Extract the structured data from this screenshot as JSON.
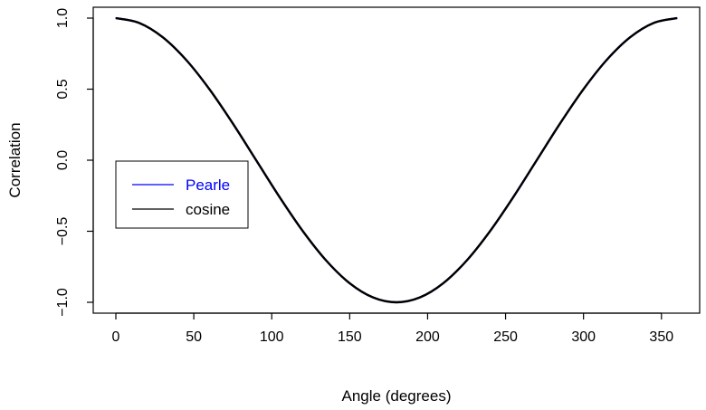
{
  "chart_data": {
    "type": "line",
    "title": "",
    "xlabel": "Angle (degrees)",
    "ylabel": "Correlation",
    "xlim": [
      0,
      360
    ],
    "ylim": [
      -1,
      1
    ],
    "x_ticks": [
      0,
      50,
      100,
      150,
      200,
      250,
      300,
      350
    ],
    "x_tick_labels": [
      "0",
      "50",
      "100",
      "150",
      "200",
      "250",
      "300",
      "350"
    ],
    "y_ticks": [
      -1,
      -0.5,
      0,
      0.5,
      1
    ],
    "y_tick_labels": [
      "−1.0",
      "−0.5",
      "0.0",
      "0.5",
      "1.0"
    ],
    "grid": false,
    "legend_position": "left",
    "series": [
      {
        "name": "Pearle",
        "color": "#0000ff",
        "x": [
          0,
          15,
          30,
          45,
          60,
          75,
          90,
          105,
          120,
          135,
          150,
          165,
          180,
          195,
          210,
          225,
          240,
          255,
          270,
          285,
          300,
          315,
          330,
          345,
          360
        ],
        "y": [
          1,
          0.966,
          0.866,
          0.707,
          0.5,
          0.259,
          0,
          -0.259,
          -0.5,
          -0.707,
          -0.866,
          -0.966,
          -1,
          -0.966,
          -0.866,
          -0.707,
          -0.5,
          -0.259,
          0,
          0.259,
          0.5,
          0.707,
          0.866,
          0.966,
          1
        ]
      },
      {
        "name": "cosine",
        "color": "#000000",
        "x": [
          0,
          15,
          30,
          45,
          60,
          75,
          90,
          105,
          120,
          135,
          150,
          165,
          180,
          195,
          210,
          225,
          240,
          255,
          270,
          285,
          300,
          315,
          330,
          345,
          360
        ],
        "y": [
          1,
          0.966,
          0.866,
          0.707,
          0.5,
          0.259,
          0,
          -0.259,
          -0.5,
          -0.707,
          -0.866,
          -0.966,
          -1,
          -0.966,
          -0.866,
          -0.707,
          -0.5,
          -0.259,
          0,
          0.259,
          0.5,
          0.707,
          0.866,
          0.966,
          1
        ]
      }
    ]
  }
}
